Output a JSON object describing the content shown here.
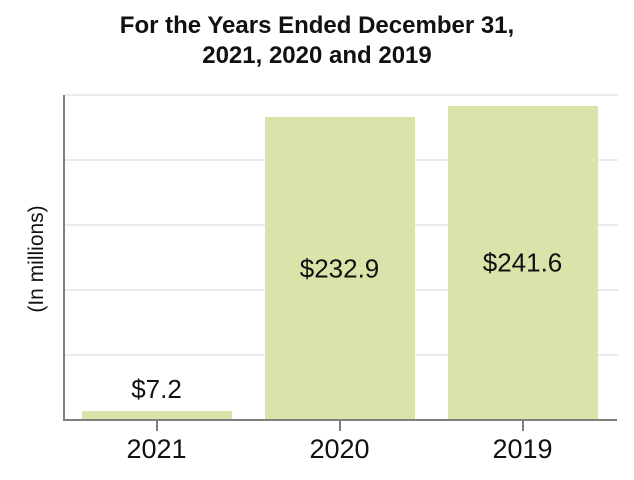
{
  "title": {
    "line1": "For the Years Ended December 31,",
    "line2": "2021, 2020 and 2019"
  },
  "chart_data": {
    "type": "bar",
    "title": "For the Years Ended December 31, 2021, 2020 and 2019",
    "categories": [
      "2021",
      "2020",
      "2019"
    ],
    "values": [
      7.2,
      232.9,
      241.6
    ],
    "value_labels": [
      "$7.2",
      "$232.9",
      "$241.6"
    ],
    "xlabel": "",
    "ylabel": "(In millions)",
    "ylim": [
      0,
      250
    ],
    "ytick_interval": 50,
    "ytick_labels_shown": false,
    "grid": "horizontal",
    "legend": "none",
    "bar_color": "#dbe3aa"
  },
  "colors": {
    "bar_fill": "#dbe3aa",
    "axis_line": "#7f7f7f",
    "gridline": "#ebebeb",
    "text": "#111111",
    "background": "#ffffff"
  }
}
